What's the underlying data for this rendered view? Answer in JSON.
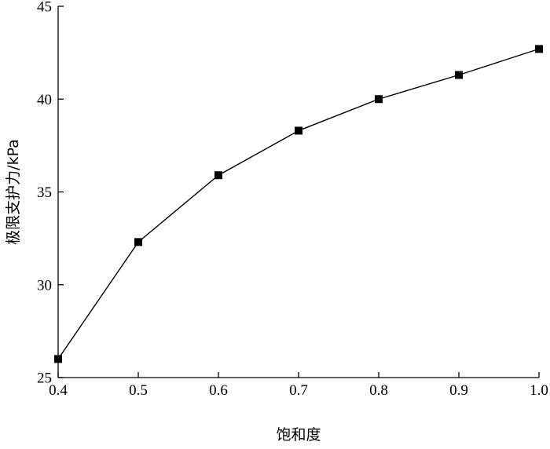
{
  "chart_data": {
    "type": "line",
    "title": "",
    "xlabel": "饱和度",
    "ylabel": "极限支护力/kPa",
    "xlim": [
      0.4,
      1.0
    ],
    "ylim": [
      25,
      45
    ],
    "x_ticks": [
      "0.4",
      "0.5",
      "0.6",
      "0.7",
      "0.8",
      "0.9",
      "1.0"
    ],
    "y_ticks": [
      "25",
      "30",
      "35",
      "40",
      "45"
    ],
    "grid": false,
    "legend": "none",
    "series": [
      {
        "marker": "square",
        "color": "#000000",
        "x": [
          0.4,
          0.5,
          0.6,
          0.7,
          0.8,
          0.9,
          1.0
        ],
        "y": [
          26.0,
          32.3,
          35.9,
          38.3,
          40.0,
          41.3,
          42.7
        ]
      }
    ]
  }
}
